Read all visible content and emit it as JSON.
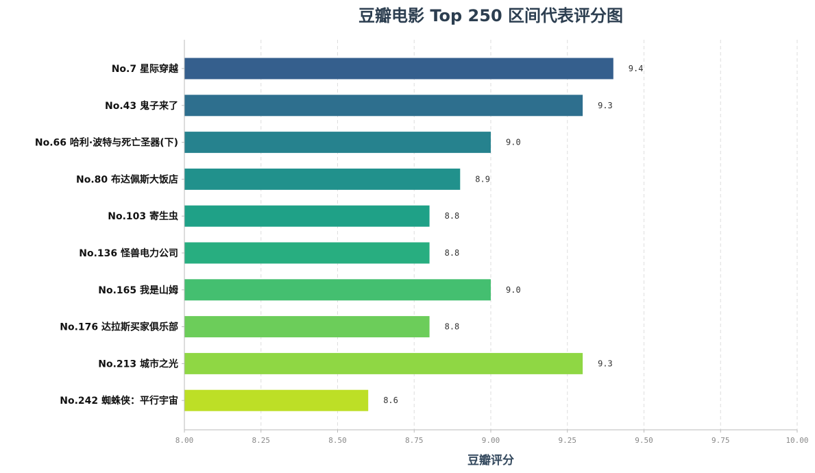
{
  "chart_data": {
    "type": "bar",
    "orientation": "horizontal",
    "title": "豆瓣电影 Top 250 区间代表评分图",
    "xlabel": "豆瓣评分",
    "ylabel": "",
    "xlim": [
      8.0,
      10.0
    ],
    "xticks": [
      "8.00",
      "8.25",
      "8.50",
      "8.75",
      "9.00",
      "9.25",
      "9.50",
      "9.75",
      "10.00"
    ],
    "grid": "x-dashed",
    "categories": [
      "No.7 星际穿越",
      "No.43 鬼子来了",
      "No.66 哈利·波特与死亡圣器(下)",
      "No.80 布达佩斯大饭店",
      "No.103 寄生虫",
      "No.136 怪兽电力公司",
      "No.165 我是山姆",
      "No.176 达拉斯买家俱乐部",
      "No.213 城市之光",
      "No.242 蜘蛛侠：平行宇宙"
    ],
    "values": [
      9.4,
      9.3,
      9.0,
      8.9,
      8.8,
      8.8,
      9.0,
      8.8,
      9.3,
      8.6
    ],
    "value_labels": [
      "9.4",
      "9.3",
      "9.0",
      "8.9",
      "8.8",
      "8.8",
      "9.0",
      "8.8",
      "9.3",
      "8.6"
    ],
    "colors": [
      "#355f8d",
      "#2e6f8e",
      "#26828e",
      "#21918c",
      "#1fa187",
      "#28ae80",
      "#44bf70",
      "#6ccd5a",
      "#8fd744",
      "#bddf26"
    ]
  }
}
